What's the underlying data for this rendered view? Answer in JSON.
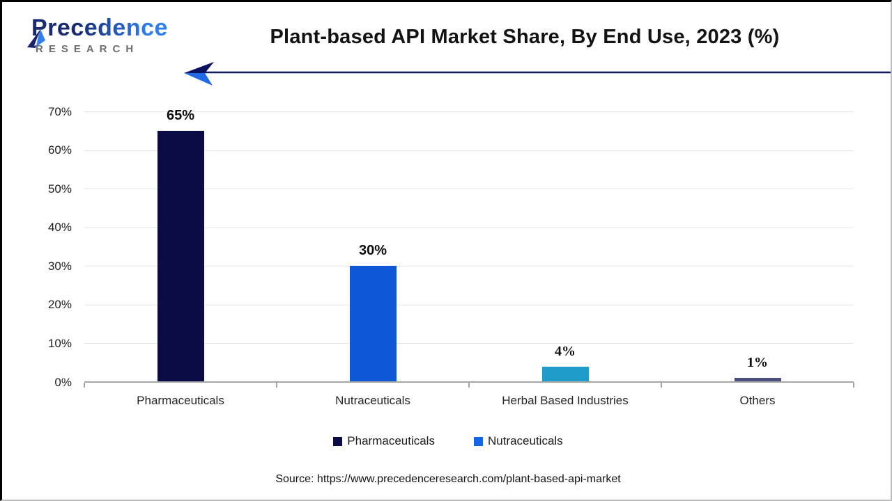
{
  "logo": {
    "brand": "Precedence",
    "subtitle": "RESEARCH",
    "brand_color_start": "#182a74",
    "brand_color_end": "#2e7ef0",
    "subtitle_color": "#6e6e6e"
  },
  "header": {
    "title": "Plant-based API Market Share, By End Use, 2023 (%)"
  },
  "decor": {
    "arrow_line_color": "#0e195e",
    "arrow_head_dark": "#0a1160",
    "arrow_head_light": "#1f6be6"
  },
  "chart_data": {
    "type": "bar",
    "title": "Plant-based API Market Share, By End Use, 2023 (%)",
    "categories": [
      "Pharmaceuticals",
      "Nutraceuticals",
      "Herbal Based Industries",
      "Others"
    ],
    "values": [
      65,
      30,
      4,
      1
    ],
    "value_labels": [
      "65%",
      "30%",
      "4%",
      "1%"
    ],
    "bar_colors": [
      "#0b0b45",
      "#0e57d5",
      "#1f9cc9",
      "#4a4f7d"
    ],
    "yticks": [
      "0%",
      "10%",
      "20%",
      "30%",
      "40%",
      "50%",
      "60%",
      "70%"
    ],
    "ylim": [
      0,
      70
    ],
    "ytick_step": 10,
    "grid": true,
    "gridline_color": "#e7e7e7",
    "axis_color": "#a6a6a6",
    "legend_position": "bottom",
    "legend": [
      {
        "label": "Pharmaceuticals",
        "color": "#0b0b45"
      },
      {
        "label": "Nutraceuticals",
        "color": "#1565e6"
      }
    ],
    "value_label_fonts": [
      "sans",
      "sans",
      "serif",
      "serif"
    ]
  },
  "footer": {
    "source": "Source: https://www.precedenceresearch.com/plant-based-api-market"
  }
}
